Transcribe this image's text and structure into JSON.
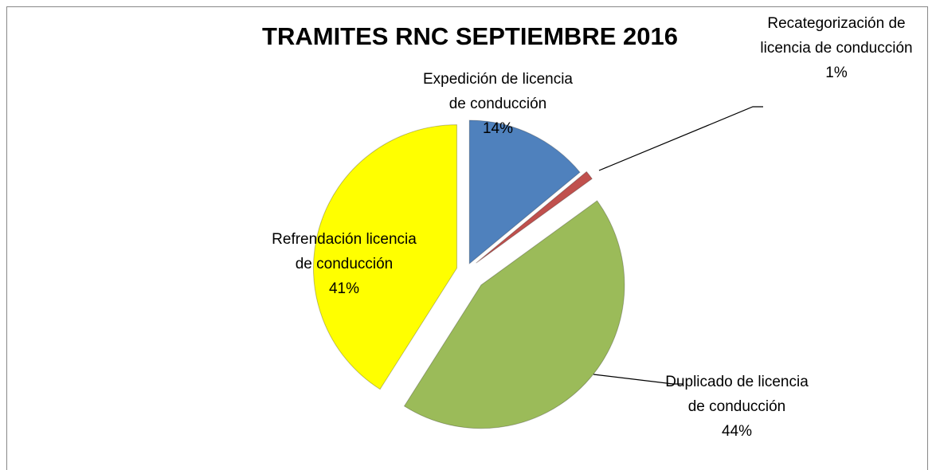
{
  "chart_data": {
    "type": "pie",
    "title": "TRAMITES RNC SEPTIEMBRE 2016",
    "categories": [
      "Expedición de licencia de conducción",
      "Recategorización de licencia de conducción",
      "Duplicado de licencia de conducción",
      "Refrendación licencia de conducción"
    ],
    "values": [
      14,
      1,
      44,
      41
    ],
    "value_labels": [
      "14%",
      "1%",
      "44%",
      "41%"
    ],
    "colors": [
      "#4f81bd",
      "#c0504d",
      "#9bbb59",
      "#ffff00"
    ]
  }
}
